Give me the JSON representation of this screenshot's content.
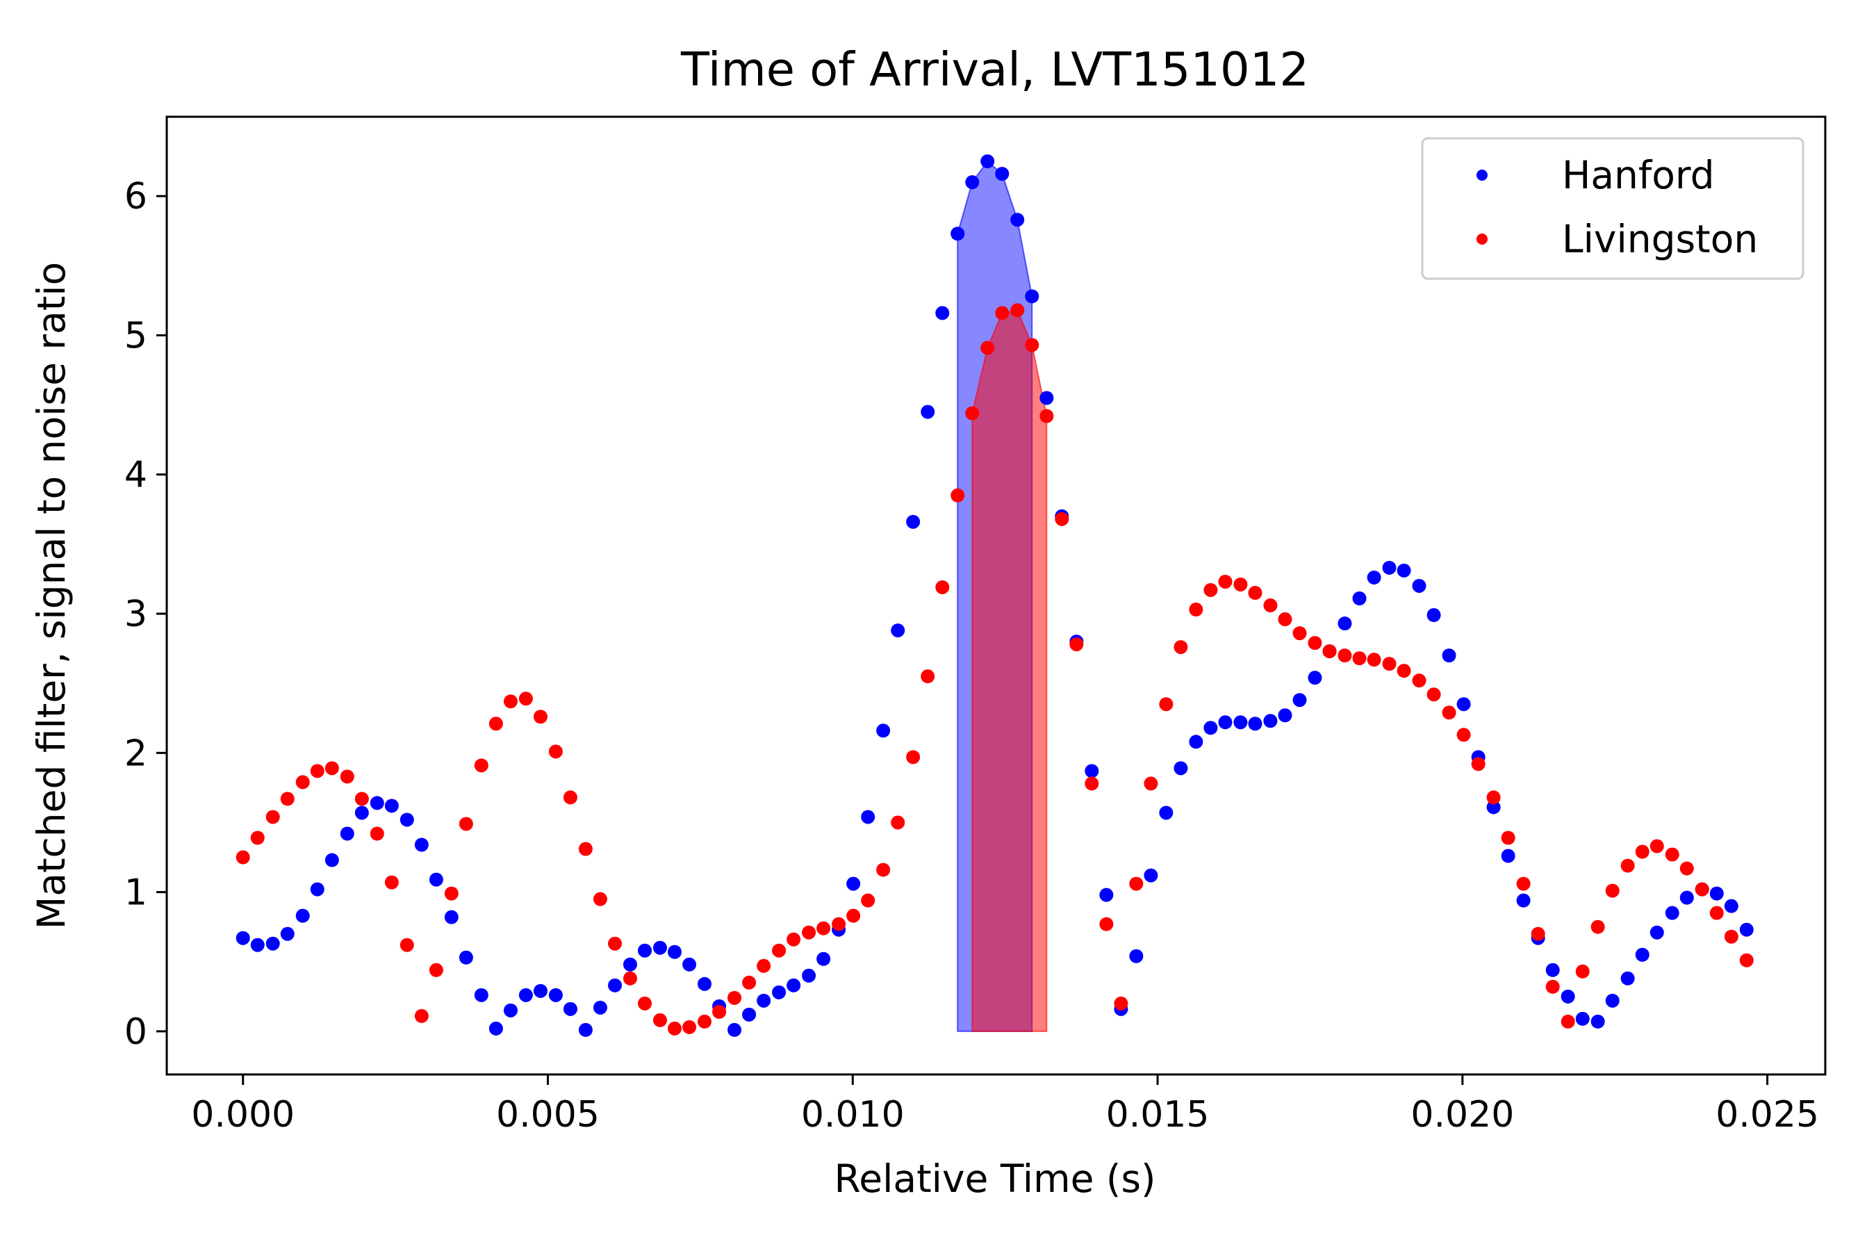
{
  "chart_data": {
    "type": "scatter",
    "title": "Time of Arrival, LVT151012",
    "xlabel": "Relative Time (s)",
    "ylabel": "Matched filter, signal to noise ratio",
    "xlim": [
      -0.00125,
      0.02595
    ],
    "ylim": [
      -0.31,
      6.57
    ],
    "xticks": [
      0.0,
      0.005,
      0.01,
      0.015,
      0.02,
      0.025
    ],
    "xtick_labels": [
      "0.000",
      "0.005",
      "0.010",
      "0.015",
      "0.020",
      "0.025"
    ],
    "yticks": [
      0,
      1,
      2,
      3,
      4,
      5,
      6
    ],
    "ytick_labels": [
      "0",
      "1",
      "2",
      "3",
      "4",
      "5",
      "6"
    ],
    "grid": false,
    "legend_position": "top-right",
    "x": [
      0.0,
      0.00024,
      0.00049,
      0.00073,
      0.00098,
      0.00122,
      0.00146,
      0.00171,
      0.00195,
      0.0022,
      0.00244,
      0.00269,
      0.00293,
      0.00317,
      0.00342,
      0.00366,
      0.00391,
      0.00415,
      0.00439,
      0.00464,
      0.00488,
      0.00513,
      0.00537,
      0.00562,
      0.00586,
      0.0061,
      0.00635,
      0.00659,
      0.00684,
      0.00708,
      0.00732,
      0.00757,
      0.00781,
      0.00806,
      0.0083,
      0.00854,
      0.00879,
      0.00903,
      0.00928,
      0.00952,
      0.00977,
      0.01001,
      0.01025,
      0.0105,
      0.01074,
      0.01099,
      0.01123,
      0.01147,
      0.01172,
      0.01196,
      0.01221,
      0.01245,
      0.0127,
      0.01294,
      0.01318,
      0.01343,
      0.01367,
      0.01392,
      0.01416,
      0.0144,
      0.01465,
      0.01489,
      0.01514,
      0.01538,
      0.01563,
      0.01587,
      0.01611,
      0.01636,
      0.0166,
      0.01685,
      0.01709,
      0.01733,
      0.01758,
      0.01782,
      0.01807,
      0.01831,
      0.01855,
      0.0188,
      0.01904,
      0.01929,
      0.01953,
      0.01978,
      0.02002,
      0.02026,
      0.02051,
      0.02075,
      0.021,
      0.02124,
      0.02148,
      0.02173,
      0.02197,
      0.02222,
      0.02246,
      0.02271,
      0.02295,
      0.02319,
      0.02344,
      0.02368,
      0.02393,
      0.02417,
      0.02441,
      0.02466
    ],
    "series": [
      {
        "name": "Hanford",
        "color": "#0000ff",
        "y": [
          0.67,
          0.62,
          0.63,
          0.7,
          0.83,
          1.02,
          1.23,
          1.42,
          1.57,
          1.64,
          1.62,
          1.52,
          1.34,
          1.09,
          0.82,
          0.53,
          0.26,
          0.02,
          0.15,
          0.26,
          0.29,
          0.26,
          0.16,
          0.01,
          0.17,
          0.33,
          0.48,
          0.58,
          0.6,
          0.57,
          0.48,
          0.34,
          0.18,
          0.01,
          0.12,
          0.22,
          0.28,
          0.33,
          0.4,
          0.52,
          0.73,
          1.06,
          1.54,
          2.16,
          2.88,
          3.66,
          4.45,
          5.16,
          5.73,
          6.1,
          6.25,
          6.16,
          5.83,
          5.28,
          4.55,
          3.7,
          2.8,
          1.87,
          0.98,
          0.16,
          0.54,
          1.12,
          1.57,
          1.89,
          2.08,
          2.18,
          2.22,
          2.22,
          2.21,
          2.23,
          2.27,
          2.38,
          2.54,
          2.73,
          2.93,
          3.11,
          3.26,
          3.33,
          3.31,
          3.2,
          2.99,
          2.7,
          2.35,
          1.97,
          1.61,
          1.26,
          0.94,
          0.67,
          0.44,
          0.25,
          0.09,
          0.07,
          0.22,
          0.38,
          0.55,
          0.71,
          0.85,
          0.96,
          1.02,
          0.99,
          0.9,
          0.73
        ]
      },
      {
        "name": "Livingston",
        "color": "#ff0000",
        "y": [
          1.25,
          1.39,
          1.54,
          1.67,
          1.79,
          1.87,
          1.89,
          1.83,
          1.67,
          1.42,
          1.07,
          0.62,
          0.11,
          0.44,
          0.99,
          1.49,
          1.91,
          2.21,
          2.37,
          2.39,
          2.26,
          2.01,
          1.68,
          1.31,
          0.95,
          0.63,
          0.38,
          0.2,
          0.08,
          0.02,
          0.03,
          0.07,
          0.14,
          0.24,
          0.35,
          0.47,
          0.58,
          0.66,
          0.71,
          0.74,
          0.77,
          0.83,
          0.94,
          1.16,
          1.5,
          1.97,
          2.55,
          3.19,
          3.85,
          4.44,
          4.91,
          5.16,
          5.18,
          4.93,
          4.42,
          3.68,
          2.78,
          1.78,
          0.77,
          0.2,
          1.06,
          1.78,
          2.35,
          2.76,
          3.03,
          3.17,
          3.23,
          3.21,
          3.15,
          3.06,
          2.96,
          2.86,
          2.79,
          2.73,
          2.7,
          2.68,
          2.67,
          2.64,
          2.59,
          2.52,
          2.42,
          2.29,
          2.13,
          1.92,
          1.68,
          1.39,
          1.06,
          0.7,
          0.32,
          0.07,
          0.43,
          0.75,
          1.01,
          1.19,
          1.29,
          1.33,
          1.27,
          1.17,
          1.02,
          0.85,
          0.68,
          0.51
        ]
      }
    ],
    "shaded_regions": [
      {
        "series": "Hanford",
        "color": "#0000ff",
        "opacity": 0.47,
        "x": [
          0.01172,
          0.01196,
          0.01221,
          0.01245,
          0.0127,
          0.01294
        ],
        "y": [
          5.73,
          6.1,
          6.25,
          6.16,
          5.83,
          5.28
        ]
      },
      {
        "series": "Livingston",
        "color": "#ff0000",
        "opacity": 0.5,
        "x": [
          0.01196,
          0.01221,
          0.01245,
          0.0127,
          0.01294,
          0.01318
        ],
        "y": [
          4.44,
          4.91,
          5.16,
          5.18,
          4.93,
          4.42
        ]
      }
    ]
  }
}
